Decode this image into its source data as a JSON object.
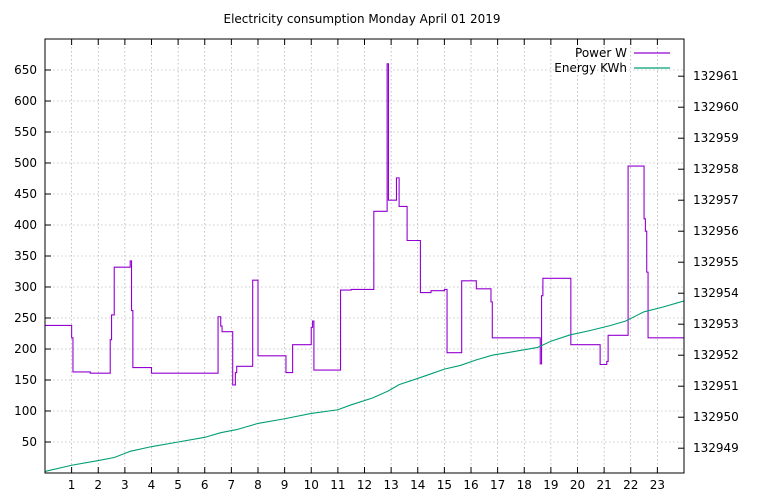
{
  "chart_data": {
    "type": "line",
    "title": "Electricity consumption Monday April 01 2019",
    "xlabel": "",
    "ylabel": "",
    "y2label": "",
    "xlim": [
      0,
      24
    ],
    "ylim": [
      0,
      700
    ],
    "y2lim": [
      132948.2,
      132962.2
    ],
    "x_ticks": [
      1,
      2,
      3,
      4,
      5,
      6,
      7,
      8,
      9,
      10,
      11,
      12,
      13,
      14,
      15,
      16,
      17,
      18,
      19,
      20,
      21,
      22,
      23
    ],
    "y_ticks": [
      50,
      100,
      150,
      200,
      250,
      300,
      350,
      400,
      450,
      500,
      550,
      600,
      650
    ],
    "y2_ticks": [
      132949,
      132950,
      132951,
      132952,
      132953,
      132954,
      132955,
      132956,
      132957,
      132958,
      132959,
      132960,
      132961
    ],
    "grid": true,
    "legend_position": "top-right",
    "series": [
      {
        "name": "Power W",
        "axis": "left",
        "color": "#9400d3",
        "step": true,
        "x": [
          0,
          1.0,
          1.05,
          1.7,
          2.45,
          2.5,
          2.6,
          3.2,
          3.25,
          3.3,
          3.9,
          4.0,
          5.8,
          6.5,
          6.6,
          6.65,
          7.05,
          7.15,
          7.2,
          7.8,
          7.85,
          8.0,
          9.0,
          9.05,
          9.15,
          9.3,
          10.0,
          10.05,
          10.1,
          11.0,
          11.1,
          11.5,
          12.3,
          12.35,
          12.8,
          12.85,
          12.9,
          13.2,
          13.25,
          13.3,
          13.6,
          13.65,
          14.1,
          14.5,
          15.0,
          15.1,
          15.6,
          15.65,
          16.2,
          16.7,
          16.75,
          16.8,
          18.5,
          18.6,
          18.65,
          18.7,
          18.75,
          19.7,
          19.75,
          20.8,
          20.85,
          21.1,
          21.15,
          21.8,
          21.9,
          22.4,
          22.5,
          22.55,
          22.6,
          22.65,
          24
        ],
        "values": [
          238,
          218,
          163,
          161,
          215,
          255,
          332,
          342,
          262,
          170,
          170,
          161,
          161,
          252,
          237,
          228,
          142,
          162,
          172,
          311,
          311,
          189,
          189,
          162,
          162,
          207,
          235,
          245,
          166,
          166,
          295,
          296,
          296,
          422,
          422,
          660,
          440,
          476,
          476,
          430,
          375,
          375,
          291,
          294,
          296,
          194,
          194,
          310,
          297,
          297,
          276,
          218,
          218,
          176,
          286,
          314,
          314,
          314,
          207,
          207,
          175,
          180,
          222,
          222,
          495,
          495,
          410,
          390,
          324,
          218,
          218
        ]
      },
      {
        "name": "Energy KWh",
        "axis": "right",
        "color": "#009e73",
        "step": false,
        "x": [
          0,
          1,
          2,
          2.6,
          3.2,
          4,
          5,
          6,
          6.6,
          7.2,
          8,
          9,
          10,
          11,
          11.5,
          12.3,
          12.9,
          13.3,
          14,
          14.5,
          15,
          15.6,
          16.2,
          16.8,
          17.5,
          18.5,
          19,
          19.7,
          20.5,
          21.2,
          21.8,
          22.5,
          23.2,
          24
        ],
        "values": [
          132948.25,
          132948.45,
          132948.6,
          132948.7,
          132948.9,
          132949.05,
          132949.2,
          132949.35,
          132949.5,
          132949.6,
          132949.8,
          132949.95,
          132950.12,
          132950.24,
          132950.4,
          132950.62,
          132950.85,
          132951.05,
          132951.25,
          132951.4,
          132951.55,
          132951.67,
          132951.85,
          132952.0,
          132952.1,
          132952.25,
          132952.45,
          132952.65,
          132952.8,
          132952.95,
          132953.1,
          132953.4,
          132953.55,
          132953.75
        ]
      }
    ]
  }
}
